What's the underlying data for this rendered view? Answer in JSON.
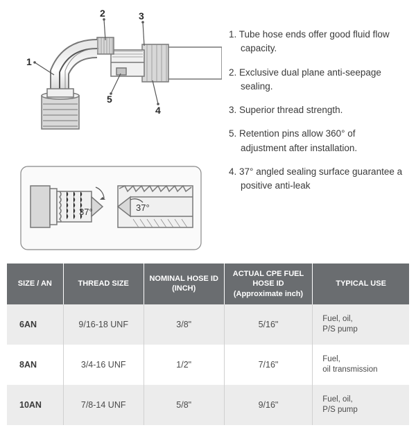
{
  "features": [
    {
      "n": "1",
      "text": "Tube hose ends offer good fluid flow capacity."
    },
    {
      "n": "2",
      "text": "Exclusive dual plane anti-seepage sealing."
    },
    {
      "n": "3",
      "text": "Superior thread strength."
    },
    {
      "n": "5",
      "text": "Retention pins allow 360° of adjustment after installation."
    },
    {
      "n": "4",
      "text": "37° angled sealing surface guarantee a positive anti-leak"
    }
  ],
  "diagram": {
    "callouts": [
      "1",
      "2",
      "3",
      "4",
      "5"
    ],
    "angle_label": "37°",
    "colors": {
      "stroke": "#777777",
      "callout_line": "#555555",
      "hatch": "#888888",
      "fill_light": "#f0f0f0",
      "fill_mid": "#d8d8d8",
      "fill_gray": "#c4c4c4",
      "detail_bg": "#fafafa"
    }
  },
  "table": {
    "headers": {
      "size": "SIZE / AN",
      "thread": "THREAD SIZE",
      "nominal": "NOMINAL HOSE ID (INCH)",
      "actual": "ACTUAL CPE FUEL HOSE ID (Approximate inch)",
      "use": "TYPICAL USE"
    },
    "rows": [
      {
        "size": "6AN",
        "thread": "9/16-18 UNF",
        "nominal": "3/8\"",
        "actual": "5/16\"",
        "use": "Fuel, oil,\nP/S pump"
      },
      {
        "size": "8AN",
        "thread": "3/4-16 UNF",
        "nominal": "1/2\"",
        "actual": "7/16\"",
        "use": "Fuel,\noil transmission"
      },
      {
        "size": "10AN",
        "thread": "7/8-14 UNF",
        "nominal": "5/8\"",
        "actual": "9/16\"",
        "use": "Fuel, oil,\nP/S pump"
      }
    ],
    "header_bg": "#6a6d70",
    "header_fg": "#ffffff",
    "row_odd_bg": "#ececec",
    "row_even_bg": "#ffffff",
    "border_color": "#d0d0d0"
  }
}
